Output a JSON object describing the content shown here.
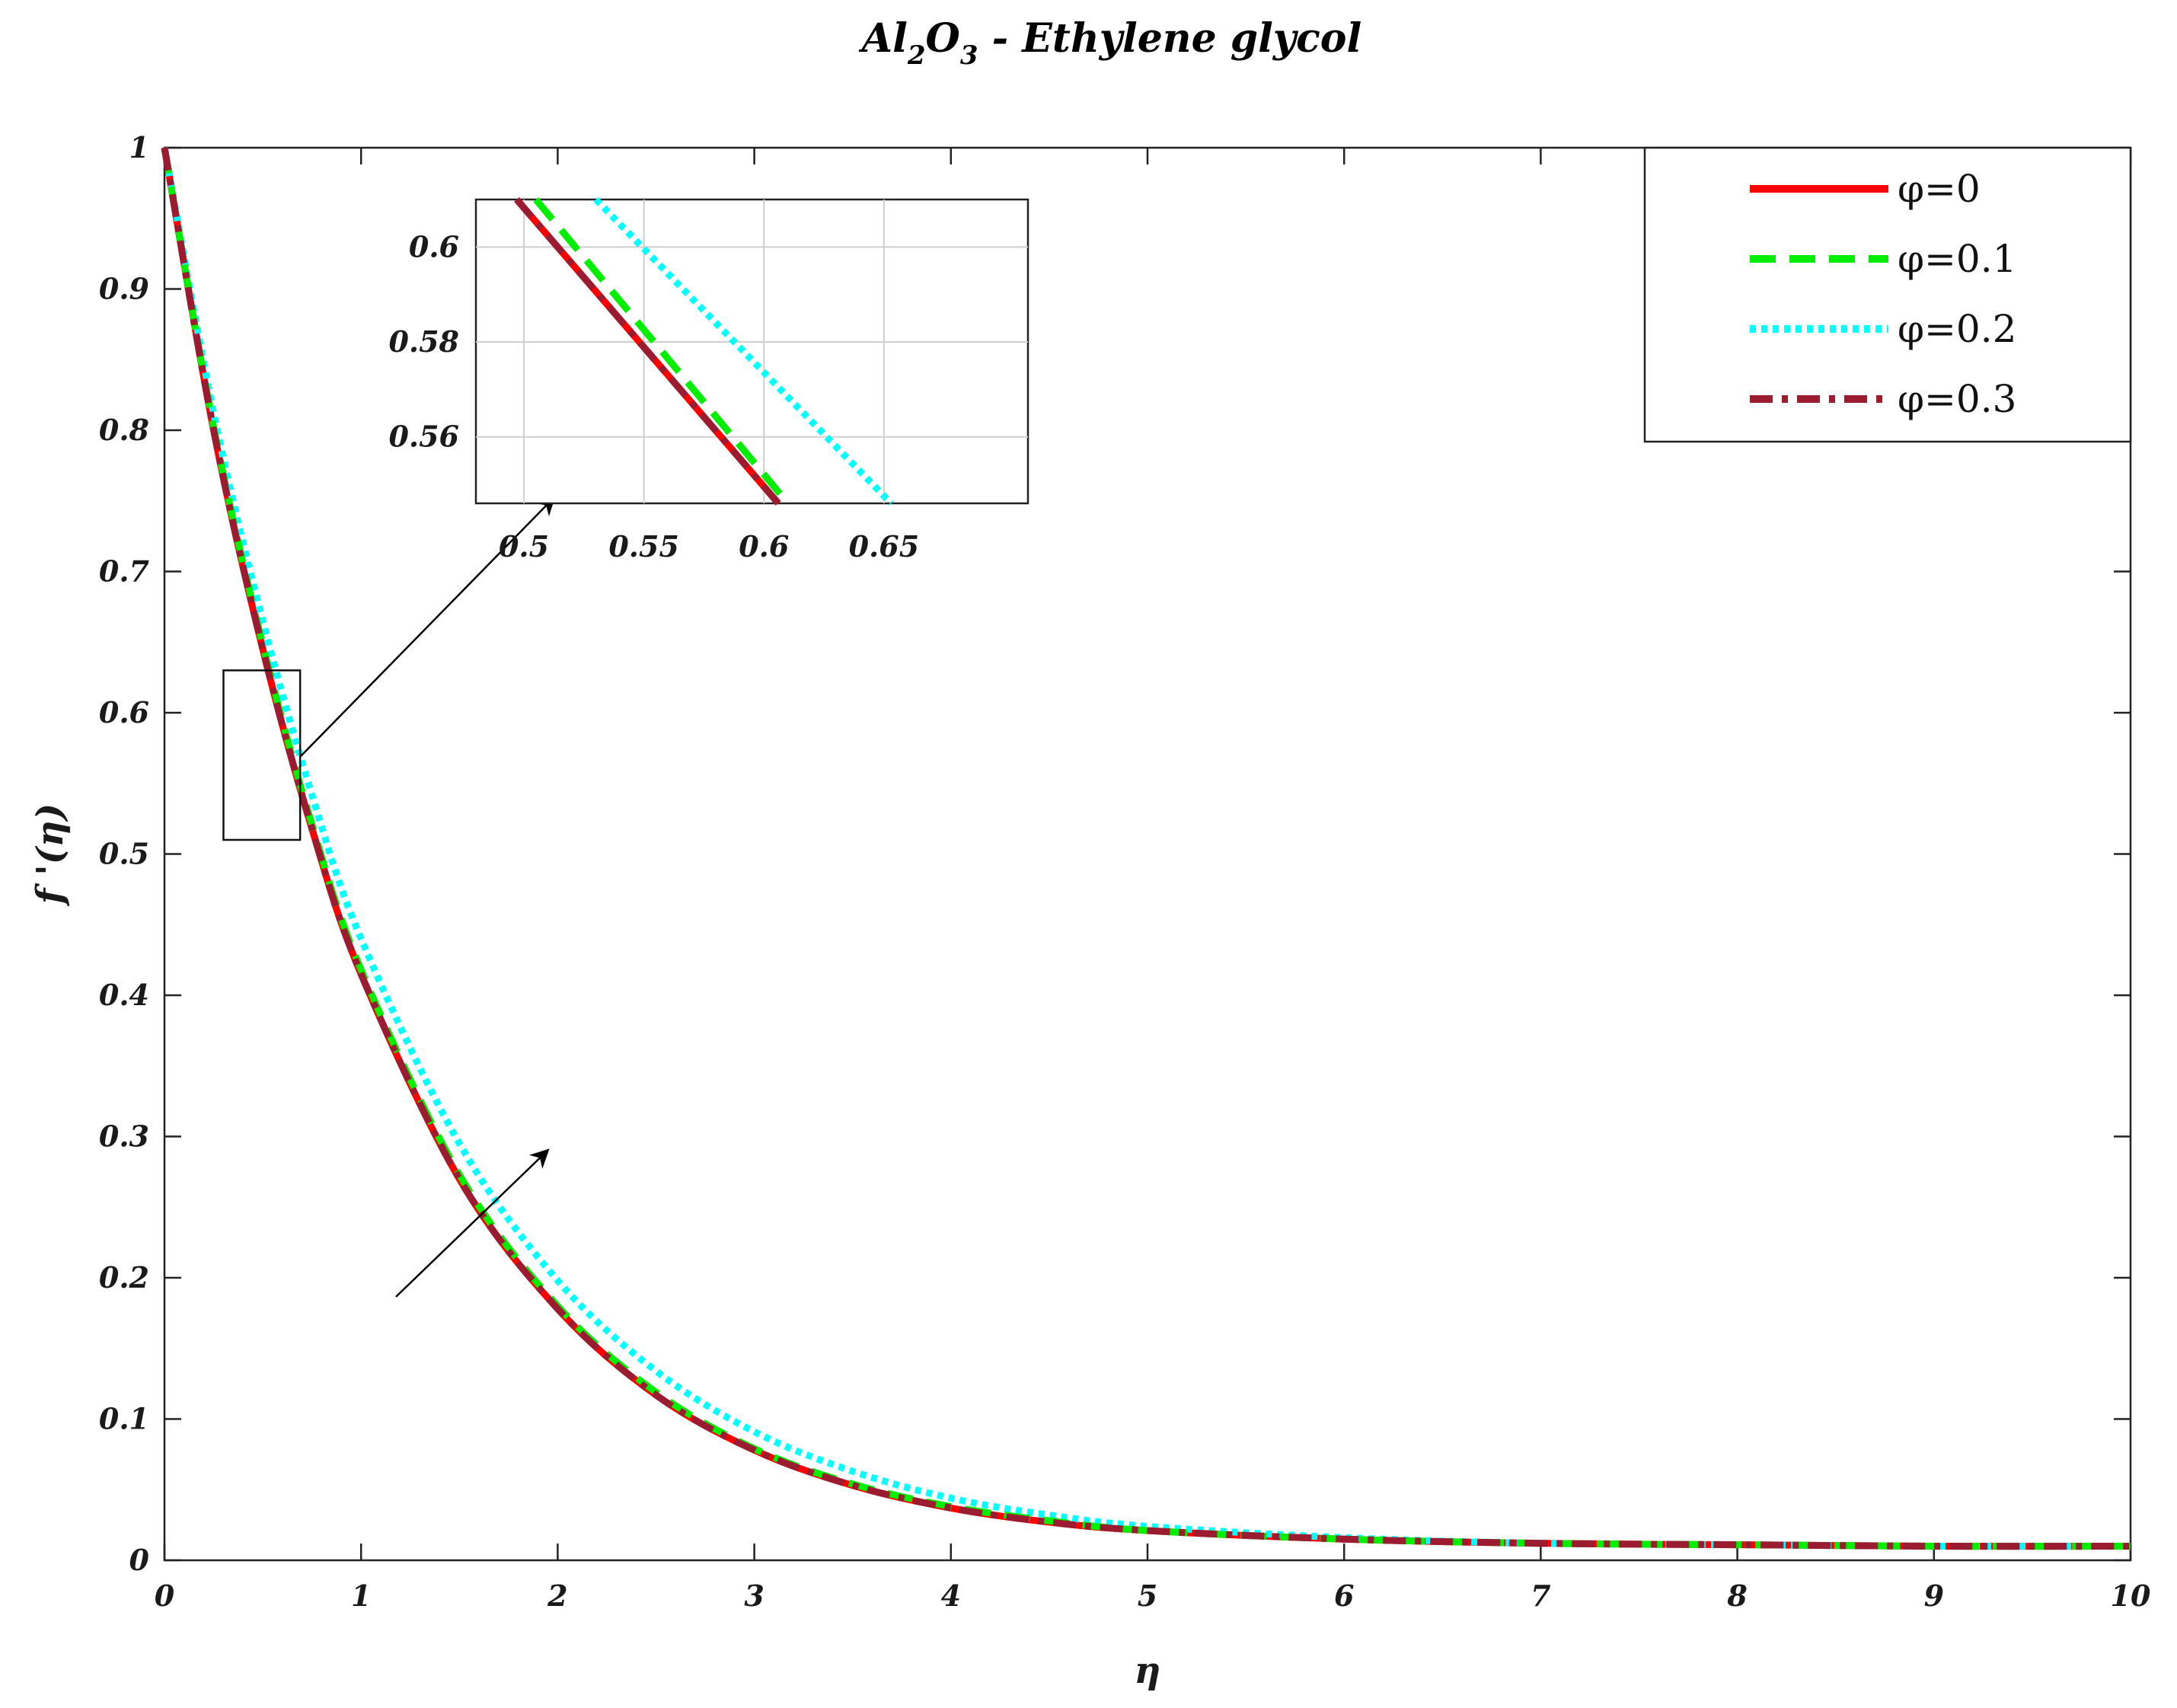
{
  "chart_data": {
    "type": "line",
    "title": {
      "base1": "Al",
      "sub1": "2",
      "base2": "O",
      "sub2": "3",
      "rest": " - Ethylene glycol"
    },
    "xlabel": "η",
    "ylabel": "f '(η)",
    "xlim": [
      0,
      10
    ],
    "ylim": [
      0,
      1
    ],
    "xticks": [
      "0",
      "1",
      "2",
      "3",
      "4",
      "5",
      "6",
      "7",
      "8",
      "9",
      "10"
    ],
    "yticks": [
      "0",
      "0.1",
      "0.2",
      "0.3",
      "0.4",
      "0.5",
      "0.6",
      "0.7",
      "0.8",
      "0.9",
      "1"
    ],
    "grid": false,
    "legend_position": "top-right",
    "series": [
      {
        "name": "φ=0",
        "color": "#ff0000",
        "style": "solid",
        "x": [
          0,
          0.25,
          0.5,
          0.75,
          1,
          1.5,
          2,
          2.5,
          3,
          3.5,
          4,
          4.5,
          5,
          6,
          7,
          8,
          9,
          10
        ],
        "y": [
          1,
          0.8,
          0.645,
          0.518,
          0.415,
          0.27,
          0.178,
          0.117,
          0.078,
          0.053,
          0.037,
          0.027,
          0.021,
          0.015,
          0.012,
          0.011,
          0.01,
          0.01
        ]
      },
      {
        "name": "φ=0.1",
        "color": "#00ee00",
        "style": "dashed",
        "x": [
          0,
          0.25,
          0.5,
          0.75,
          1,
          1.5,
          2,
          2.5,
          3,
          3.5,
          4,
          4.5,
          5,
          6,
          7,
          8,
          9,
          10
        ],
        "y": [
          1,
          0.802,
          0.648,
          0.521,
          0.418,
          0.273,
          0.18,
          0.119,
          0.079,
          0.054,
          0.038,
          0.028,
          0.021,
          0.015,
          0.012,
          0.011,
          0.01,
          0.01
        ]
      },
      {
        "name": "φ=0.2",
        "color": "#00ffff",
        "style": "dotted",
        "x": [
          0,
          0.25,
          0.5,
          0.75,
          1,
          1.5,
          2,
          2.5,
          3,
          3.5,
          4,
          4.5,
          5,
          6,
          7,
          8,
          9,
          10
        ],
        "y": [
          1,
          0.812,
          0.665,
          0.542,
          0.44,
          0.295,
          0.198,
          0.134,
          0.091,
          0.063,
          0.044,
          0.032,
          0.024,
          0.016,
          0.012,
          0.011,
          0.01,
          0.01
        ]
      },
      {
        "name": "φ=0.3",
        "color": "#9b1b30",
        "style": "dashdot",
        "x": [
          0,
          0.25,
          0.5,
          0.75,
          1,
          1.5,
          2,
          2.5,
          3,
          3.5,
          4,
          4.5,
          5,
          6,
          7,
          8,
          9,
          10
        ],
        "y": [
          1,
          0.8,
          0.645,
          0.518,
          0.415,
          0.27,
          0.178,
          0.117,
          0.078,
          0.053,
          0.037,
          0.027,
          0.021,
          0.015,
          0.012,
          0.011,
          0.01,
          0.01
        ]
      }
    ],
    "inset": {
      "xlim": [
        0.48,
        0.71
      ],
      "ylim": [
        0.546,
        0.61
      ],
      "xticks": [
        "0.5",
        "0.55",
        "0.6",
        "0.65"
      ],
      "yticks": [
        "0.56",
        "0.58",
        "0.6"
      ],
      "grid": true,
      "zoom_region": {
        "x": [
          0.3,
          0.69
        ],
        "y": [
          0.51,
          0.63
        ]
      },
      "series": [
        {
          "name": "φ=0",
          "x": [
            0.497,
            0.606
          ],
          "y": [
            0.61,
            0.546
          ]
        },
        {
          "name": "φ=0.1",
          "x": [
            0.505,
            0.61
          ],
          "y": [
            0.61,
            0.546
          ]
        },
        {
          "name": "φ=0.2",
          "x": [
            0.53,
            0.653
          ],
          "y": [
            0.61,
            0.546
          ]
        },
        {
          "name": "φ=0.3",
          "x": [
            0.497,
            0.606
          ],
          "y": [
            0.61,
            0.546
          ]
        }
      ]
    }
  }
}
